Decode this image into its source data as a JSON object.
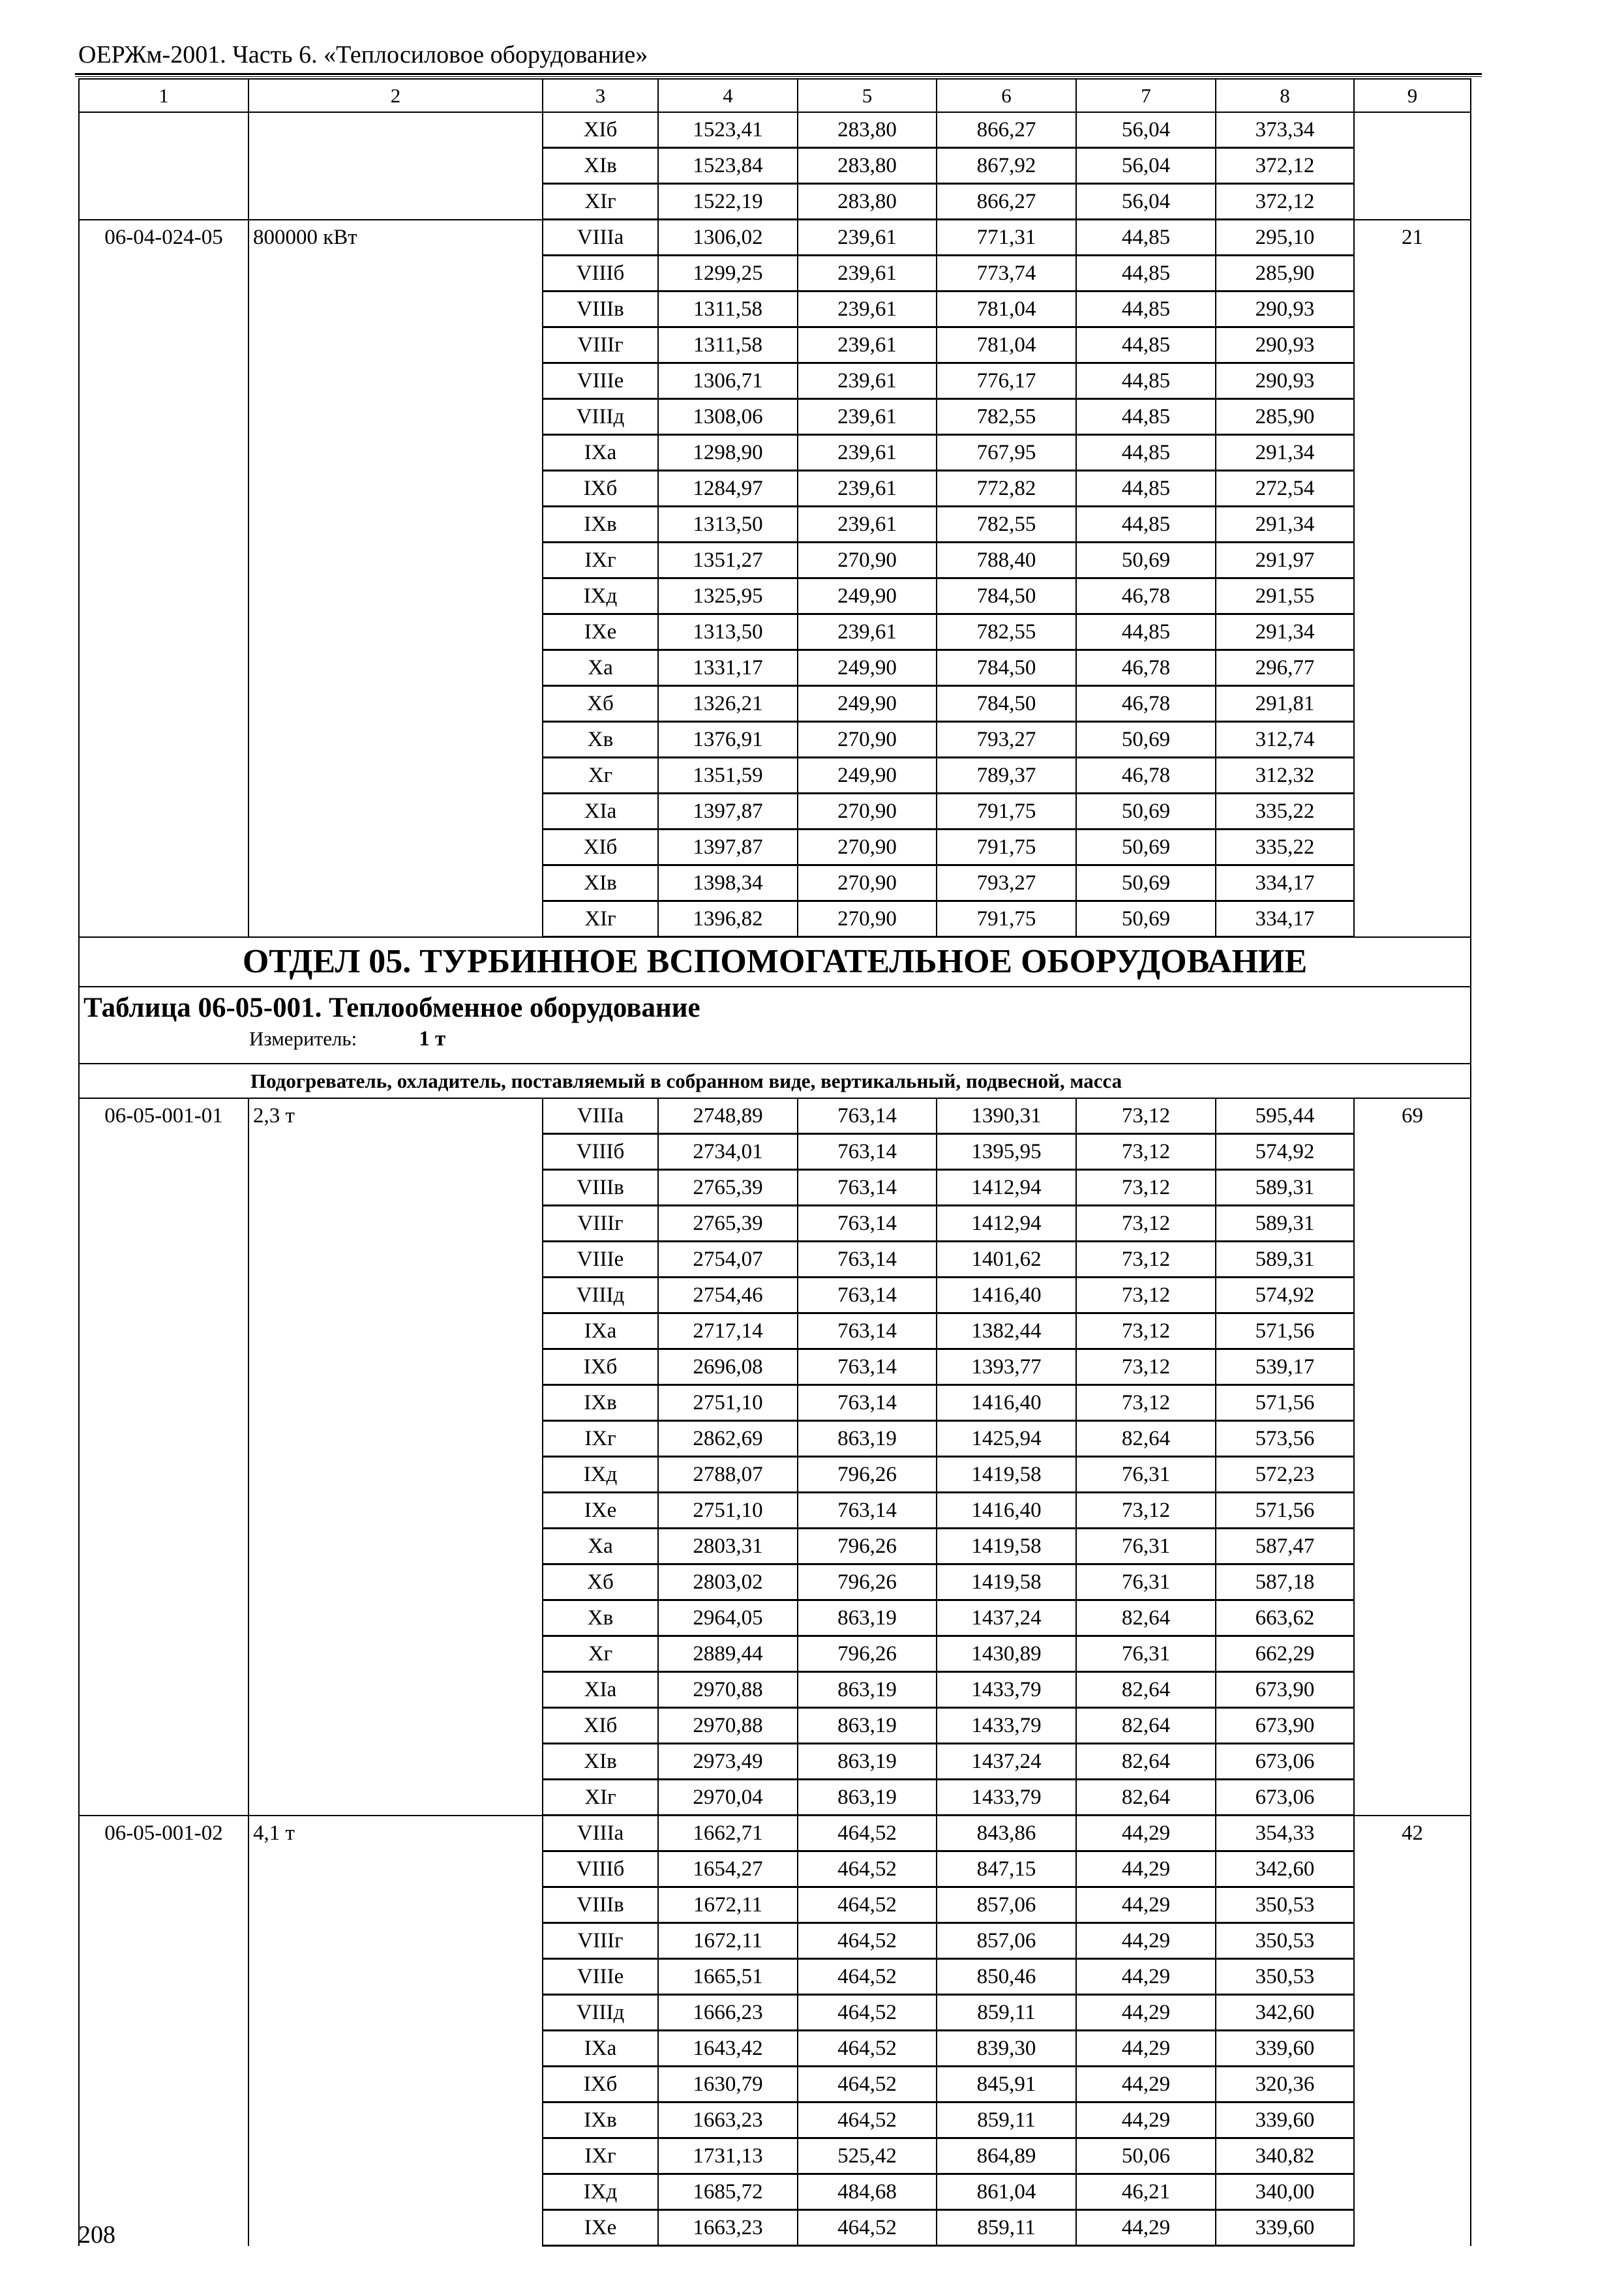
{
  "running_head": "ОЕРЖм-2001. Часть 6. «Теплосиловое оборудование»",
  "page_number": "208",
  "column_numbers": [
    "1",
    "2",
    "3",
    "4",
    "5",
    "6",
    "7",
    "8",
    "9"
  ],
  "block1": [
    {
      "code": "",
      "name": "",
      "col9": "",
      "rows": [
        [
          "XIб",
          "1523,41",
          "283,80",
          "866,27",
          "56,04",
          "373,34"
        ],
        [
          "XIв",
          "1523,84",
          "283,80",
          "867,92",
          "56,04",
          "372,12"
        ],
        [
          "XIг",
          "1522,19",
          "283,80",
          "866,27",
          "56,04",
          "372,12"
        ]
      ]
    },
    {
      "code": "06-04-024-05",
      "name": "800000 кВт",
      "col9": "21",
      "rows": [
        [
          "VIIIа",
          "1306,02",
          "239,61",
          "771,31",
          "44,85",
          "295,10"
        ],
        [
          "VIIIб",
          "1299,25",
          "239,61",
          "773,74",
          "44,85",
          "285,90"
        ],
        [
          "VIIIв",
          "1311,58",
          "239,61",
          "781,04",
          "44,85",
          "290,93"
        ],
        [
          "VIIIг",
          "1311,58",
          "239,61",
          "781,04",
          "44,85",
          "290,93"
        ],
        [
          "VIIIе",
          "1306,71",
          "239,61",
          "776,17",
          "44,85",
          "290,93"
        ],
        [
          "VIIIд",
          "1308,06",
          "239,61",
          "782,55",
          "44,85",
          "285,90"
        ],
        [
          "IXа",
          "1298,90",
          "239,61",
          "767,95",
          "44,85",
          "291,34"
        ],
        [
          "IXб",
          "1284,97",
          "239,61",
          "772,82",
          "44,85",
          "272,54"
        ],
        [
          "IXв",
          "1313,50",
          "239,61",
          "782,55",
          "44,85",
          "291,34"
        ],
        [
          "IXг",
          "1351,27",
          "270,90",
          "788,40",
          "50,69",
          "291,97"
        ],
        [
          "IXд",
          "1325,95",
          "249,90",
          "784,50",
          "46,78",
          "291,55"
        ],
        [
          "IXе",
          "1313,50",
          "239,61",
          "782,55",
          "44,85",
          "291,34"
        ],
        [
          "Xа",
          "1331,17",
          "249,90",
          "784,50",
          "46,78",
          "296,77"
        ],
        [
          "Xб",
          "1326,21",
          "249,90",
          "784,50",
          "46,78",
          "291,81"
        ],
        [
          "Xв",
          "1376,91",
          "270,90",
          "793,27",
          "50,69",
          "312,74"
        ],
        [
          "Xг",
          "1351,59",
          "249,90",
          "789,37",
          "46,78",
          "312,32"
        ],
        [
          "XIа",
          "1397,87",
          "270,90",
          "791,75",
          "50,69",
          "335,22"
        ],
        [
          "XIб",
          "1397,87",
          "270,90",
          "791,75",
          "50,69",
          "335,22"
        ],
        [
          "XIв",
          "1398,34",
          "270,90",
          "793,27",
          "50,69",
          "334,17"
        ],
        [
          "XIг",
          "1396,82",
          "270,90",
          "791,75",
          "50,69",
          "334,17"
        ]
      ]
    }
  ],
  "section_heading": "ОТДЕЛ 05. ТУРБИННОЕ ВСПОМОГАТЕЛЬНОЕ ОБОРУДОВАНИЕ",
  "table_title": "Таблица 06-05-001. Теплообменное оборудование",
  "measure_label": "Измеритель:",
  "measure_value": "1 т",
  "subtitle": "Подогреватель, охладитель, поставляемый в собранном виде, вертикальный, подвесной, масса",
  "block2": [
    {
      "code": "06-05-001-01",
      "name": "2,3 т",
      "col9": "69",
      "rows": [
        [
          "VIIIа",
          "2748,89",
          "763,14",
          "1390,31",
          "73,12",
          "595,44"
        ],
        [
          "VIIIб",
          "2734,01",
          "763,14",
          "1395,95",
          "73,12",
          "574,92"
        ],
        [
          "VIIIв",
          "2765,39",
          "763,14",
          "1412,94",
          "73,12",
          "589,31"
        ],
        [
          "VIIIг",
          "2765,39",
          "763,14",
          "1412,94",
          "73,12",
          "589,31"
        ],
        [
          "VIIIе",
          "2754,07",
          "763,14",
          "1401,62",
          "73,12",
          "589,31"
        ],
        [
          "VIIIд",
          "2754,46",
          "763,14",
          "1416,40",
          "73,12",
          "574,92"
        ],
        [
          "IXа",
          "2717,14",
          "763,14",
          "1382,44",
          "73,12",
          "571,56"
        ],
        [
          "IXб",
          "2696,08",
          "763,14",
          "1393,77",
          "73,12",
          "539,17"
        ],
        [
          "IXв",
          "2751,10",
          "763,14",
          "1416,40",
          "73,12",
          "571,56"
        ],
        [
          "IXг",
          "2862,69",
          "863,19",
          "1425,94",
          "82,64",
          "573,56"
        ],
        [
          "IXд",
          "2788,07",
          "796,26",
          "1419,58",
          "76,31",
          "572,23"
        ],
        [
          "IXе",
          "2751,10",
          "763,14",
          "1416,40",
          "73,12",
          "571,56"
        ],
        [
          "Xа",
          "2803,31",
          "796,26",
          "1419,58",
          "76,31",
          "587,47"
        ],
        [
          "Xб",
          "2803,02",
          "796,26",
          "1419,58",
          "76,31",
          "587,18"
        ],
        [
          "Xв",
          "2964,05",
          "863,19",
          "1437,24",
          "82,64",
          "663,62"
        ],
        [
          "Xг",
          "2889,44",
          "796,26",
          "1430,89",
          "76,31",
          "662,29"
        ],
        [
          "XIа",
          "2970,88",
          "863,19",
          "1433,79",
          "82,64",
          "673,90"
        ],
        [
          "XIб",
          "2970,88",
          "863,19",
          "1433,79",
          "82,64",
          "673,90"
        ],
        [
          "XIв",
          "2973,49",
          "863,19",
          "1437,24",
          "82,64",
          "673,06"
        ],
        [
          "XIг",
          "2970,04",
          "863,19",
          "1433,79",
          "82,64",
          "673,06"
        ]
      ]
    },
    {
      "code": "06-05-001-02",
      "name": "4,1 т",
      "col9": "42",
      "rows": [
        [
          "VIIIа",
          "1662,71",
          "464,52",
          "843,86",
          "44,29",
          "354,33"
        ],
        [
          "VIIIб",
          "1654,27",
          "464,52",
          "847,15",
          "44,29",
          "342,60"
        ],
        [
          "VIIIв",
          "1672,11",
          "464,52",
          "857,06",
          "44,29",
          "350,53"
        ],
        [
          "VIIIг",
          "1672,11",
          "464,52",
          "857,06",
          "44,29",
          "350,53"
        ],
        [
          "VIIIе",
          "1665,51",
          "464,52",
          "850,46",
          "44,29",
          "350,53"
        ],
        [
          "VIIIд",
          "1666,23",
          "464,52",
          "859,11",
          "44,29",
          "342,60"
        ],
        [
          "IXа",
          "1643,42",
          "464,52",
          "839,30",
          "44,29",
          "339,60"
        ],
        [
          "IXб",
          "1630,79",
          "464,52",
          "845,91",
          "44,29",
          "320,36"
        ],
        [
          "IXв",
          "1663,23",
          "464,52",
          "859,11",
          "44,29",
          "339,60"
        ],
        [
          "IXг",
          "1731,13",
          "525,42",
          "864,89",
          "50,06",
          "340,82"
        ],
        [
          "IXд",
          "1685,72",
          "484,68",
          "861,04",
          "46,21",
          "340,00"
        ],
        [
          "IXе",
          "1663,23",
          "464,52",
          "859,11",
          "44,29",
          "339,60"
        ]
      ]
    }
  ]
}
